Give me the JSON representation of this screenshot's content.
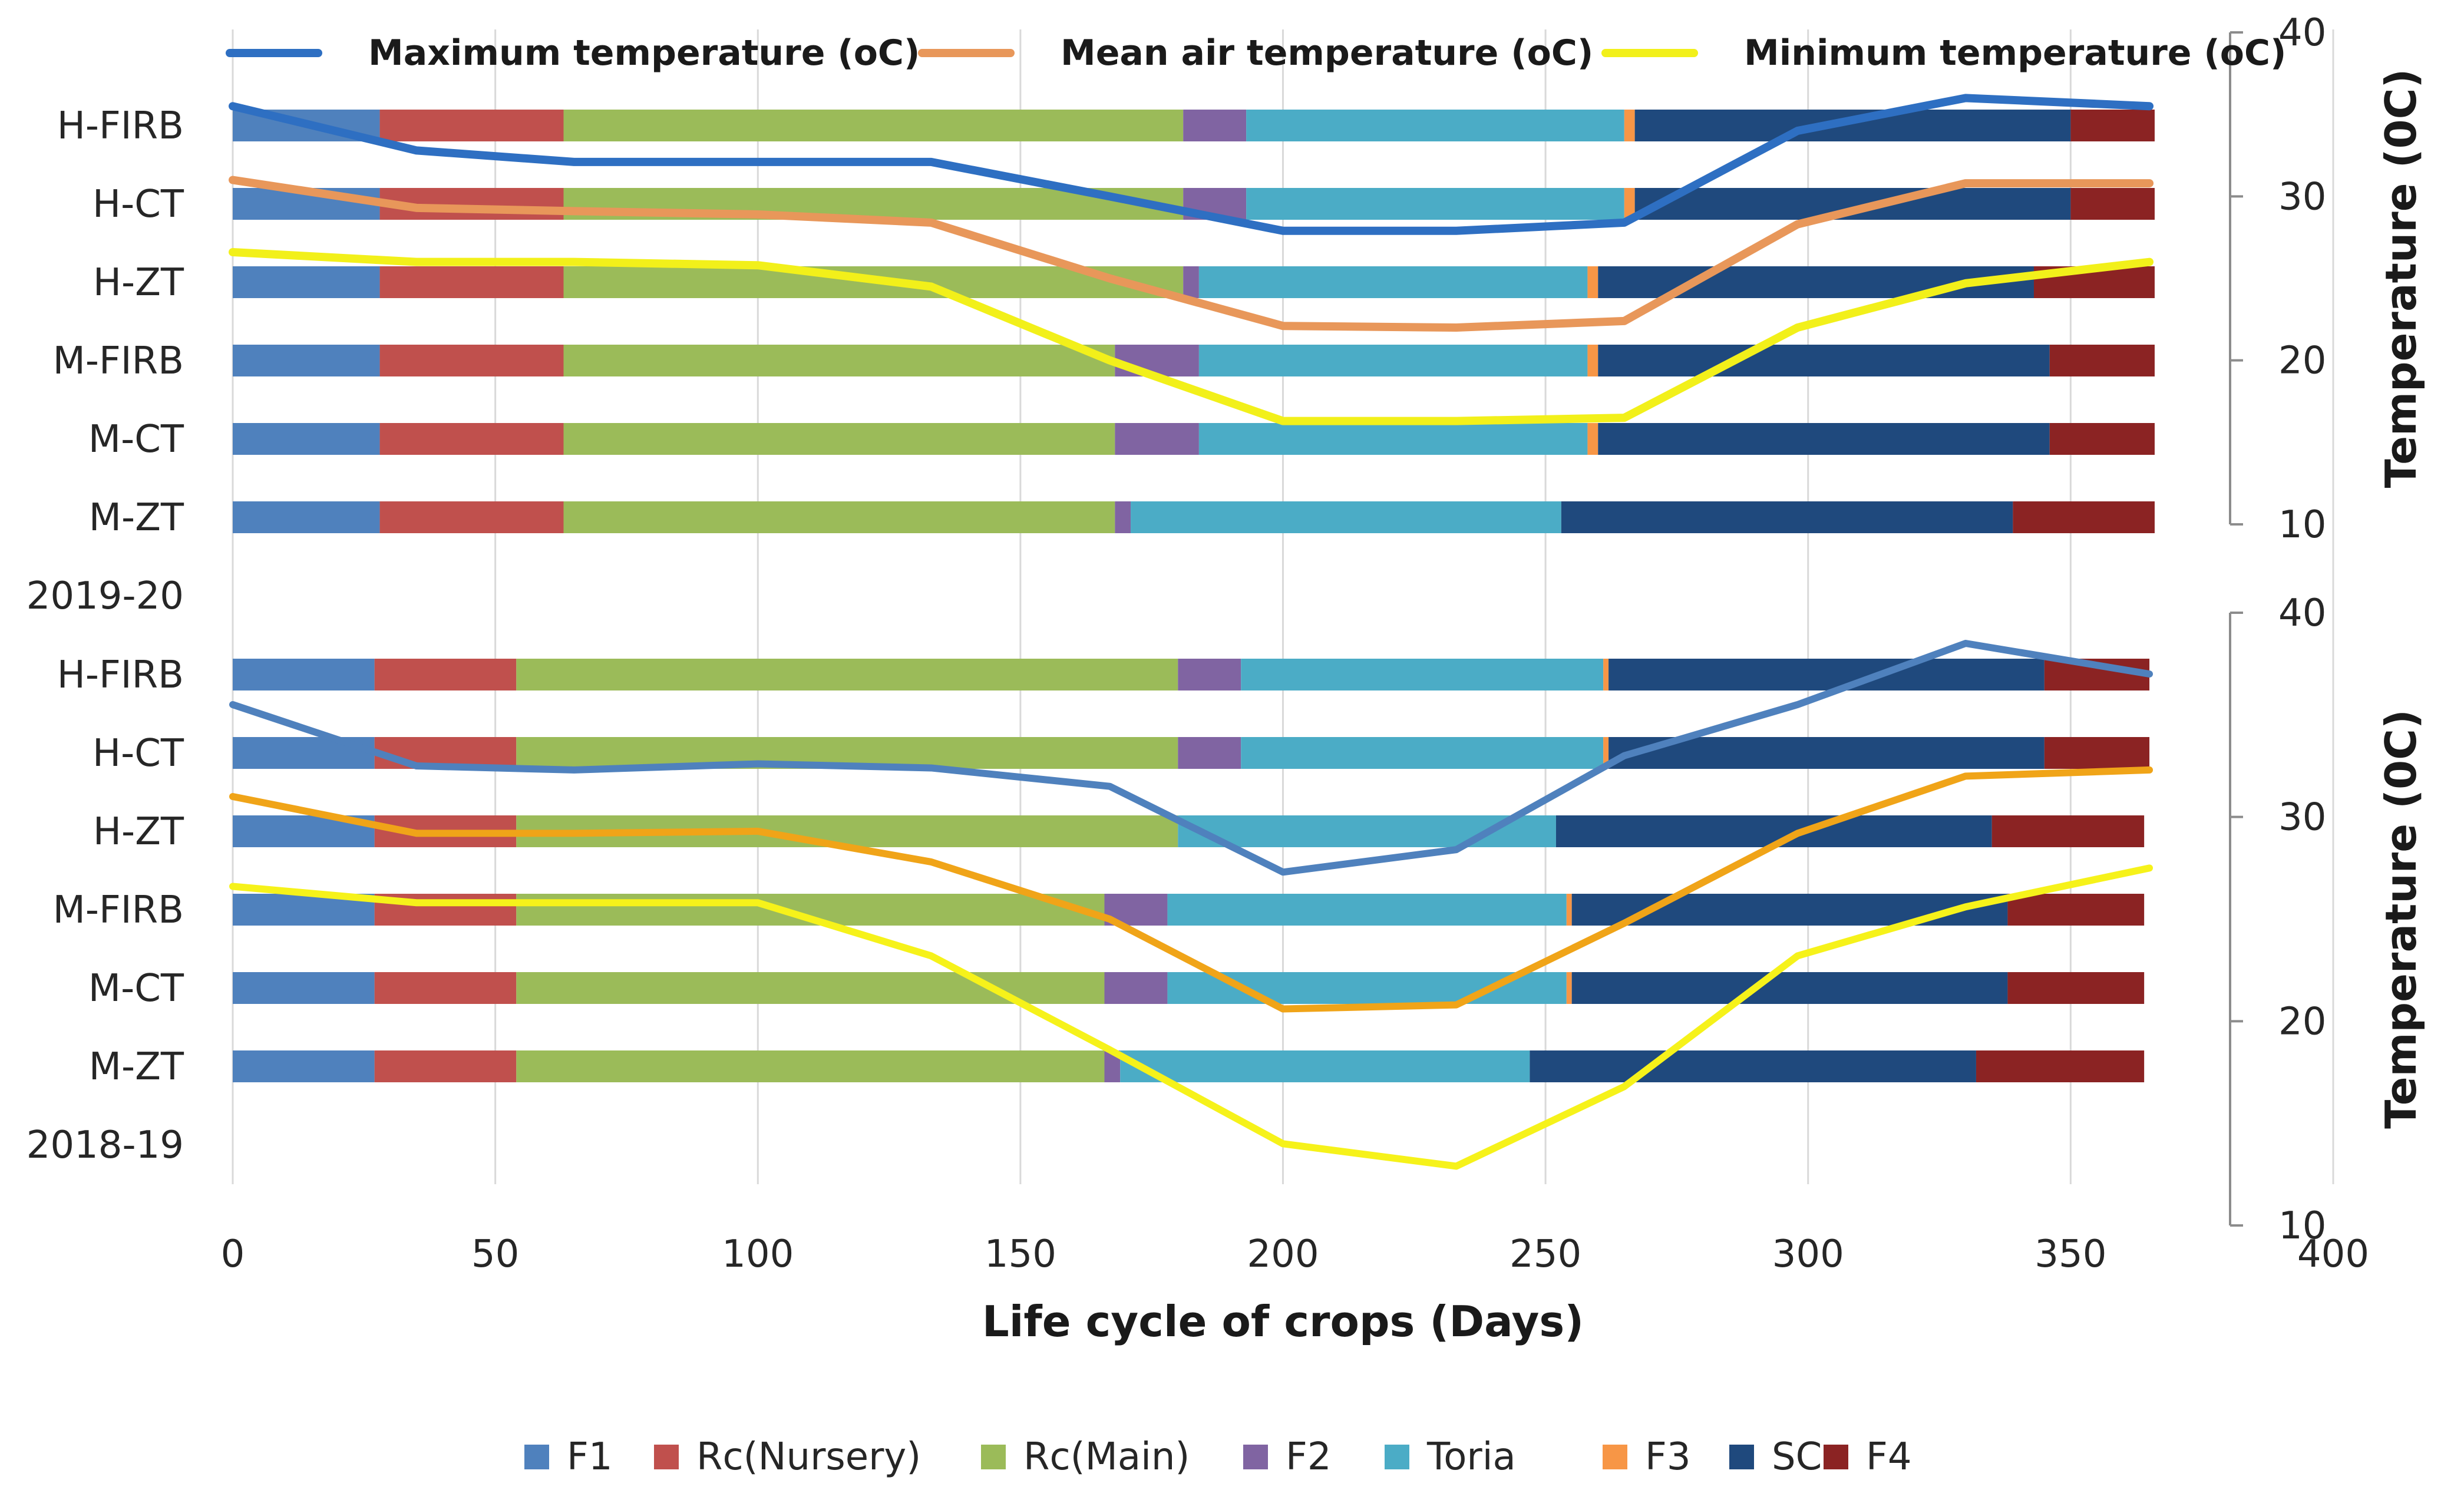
{
  "chart_data": {
    "type": "bar",
    "subtype": "stacked-horizontal-bar-with-temperature-lines",
    "xlabel": "Life cycle of crops (Days)",
    "xlim": [
      0,
      400
    ],
    "xticks": [
      0,
      50,
      100,
      150,
      200,
      250,
      300,
      350,
      400
    ],
    "categories": [
      "H-FIRB",
      "H-CT",
      "H-ZT",
      "M-FIRB",
      "M-CT",
      "M-ZT",
      "2019-20",
      "H-FIRB",
      "H-CT",
      "H-ZT",
      "M-FIRB",
      "M-CT",
      "M-ZT",
      "2018-19"
    ],
    "phases": [
      {
        "name": "F1",
        "color": "#4F81BD"
      },
      {
        "name": "Rc(Nursery)",
        "color": "#C0504D"
      },
      {
        "name": "Rc(Main)",
        "color": "#9BBB59"
      },
      {
        "name": "F2",
        "color": "#8064A2"
      },
      {
        "name": "Toria",
        "color": "#4BACC6"
      },
      {
        "name": "F3",
        "color": "#F79646"
      },
      {
        "name": "SC",
        "color": "#1F497D"
      },
      {
        "name": "F4",
        "color": "#8B2323"
      }
    ],
    "panels": [
      {
        "year": "2019-20",
        "y2label": "Temperature (0C)",
        "y2lim": [
          10,
          40
        ],
        "y2ticks": [
          10,
          20,
          30,
          40
        ],
        "rows": [
          {
            "label": "H-FIRB",
            "durations": [
              28,
              35,
              118,
              12,
              72,
              2,
              83,
              16
            ]
          },
          {
            "label": "H-CT",
            "durations": [
              28,
              35,
              118,
              12,
              72,
              2,
              83,
              16
            ]
          },
          {
            "label": "H-ZT",
            "durations": [
              28,
              35,
              118,
              3,
              74,
              2,
              83,
              23
            ]
          },
          {
            "label": "M-FIRB",
            "durations": [
              28,
              35,
              105,
              16,
              74,
              2,
              86,
              20
            ]
          },
          {
            "label": "M-CT",
            "durations": [
              28,
              35,
              105,
              16,
              74,
              2,
              86,
              20
            ]
          },
          {
            "label": "M-ZT",
            "durations": [
              28,
              35,
              105,
              3,
              82,
              0,
              86,
              27
            ]
          }
        ],
        "series": [
          {
            "name": "Maximum temperature (oC)",
            "color": "#2E6FC2",
            "x": [
              0,
              35,
              65,
              100,
              133,
              167,
              200,
              233,
              265,
              298,
              330,
              365
            ],
            "y": [
              35.5,
              32.8,
              32.1,
              32.1,
              32.1,
              30.0,
              27.9,
              27.9,
              28.4,
              34.0,
              36.0,
              35.5
            ]
          },
          {
            "name": "Mean air temperature (oC)",
            "color": "#E8975A",
            "x": [
              0,
              35,
              65,
              100,
              133,
              167,
              200,
              233,
              265,
              298,
              330,
              365
            ],
            "y": [
              31.0,
              29.3,
              29.1,
              28.9,
              28.4,
              25.0,
              22.1,
              22.0,
              22.4,
              28.3,
              30.8,
              30.8
            ]
          },
          {
            "name": "Minimum temperature (oC)",
            "color": "#F2F01A",
            "x": [
              0,
              35,
              65,
              100,
              133,
              167,
              200,
              233,
              265,
              298,
              330,
              365
            ],
            "y": [
              26.6,
              26.0,
              26.0,
              25.8,
              24.5,
              20.0,
              16.3,
              16.3,
              16.5,
              22.0,
              24.7,
              26.0
            ]
          }
        ]
      },
      {
        "year": "2018-19",
        "y2label": "Temperature (0C)",
        "y2lim": [
          10,
          40
        ],
        "y2ticks": [
          10,
          20,
          30,
          40
        ],
        "rows": [
          {
            "label": "H-FIRB",
            "durations": [
              27,
              27,
              126,
              12,
              69,
              1,
              83,
              20
            ]
          },
          {
            "label": "H-CT",
            "durations": [
              27,
              27,
              126,
              12,
              69,
              1,
              83,
              20
            ]
          },
          {
            "label": "H-ZT",
            "durations": [
              27,
              27,
              126,
              0,
              72,
              0,
              83,
              29
            ]
          },
          {
            "label": "M-FIRB",
            "durations": [
              27,
              27,
              112,
              12,
              76,
              1,
              83,
              26
            ]
          },
          {
            "label": "M-CT",
            "durations": [
              27,
              27,
              112,
              12,
              76,
              1,
              83,
              26
            ]
          },
          {
            "label": "M-ZT",
            "durations": [
              27,
              27,
              112,
              3,
              78,
              0,
              85,
              32
            ]
          }
        ],
        "series": [
          {
            "name": "Maximum temperature (oC)",
            "color": "#4F81BD",
            "x": [
              0,
              35,
              65,
              100,
              133,
              167,
              200,
              233,
              265,
              298,
              330,
              365
            ],
            "y": [
              35.5,
              32.5,
              32.3,
              32.6,
              32.4,
              31.5,
              27.3,
              28.4,
              33.0,
              35.5,
              38.5,
              37.0
            ]
          },
          {
            "name": "Mean air temperature (oC)",
            "color": "#F0A418",
            "x": [
              0,
              35,
              65,
              100,
              133,
              167,
              200,
              233,
              265,
              298,
              330,
              365
            ],
            "y": [
              31.0,
              29.2,
              29.2,
              29.3,
              27.8,
              25.0,
              20.6,
              20.8,
              24.8,
              29.2,
              32.0,
              32.3
            ]
          },
          {
            "name": "Minimum temperature (oC)",
            "color": "#F6F21A",
            "x": [
              0,
              35,
              65,
              100,
              133,
              167,
              200,
              233,
              265,
              298,
              330,
              365
            ],
            "y": [
              26.6,
              25.8,
              25.8,
              25.8,
              23.2,
              18.6,
              14.0,
              12.9,
              16.8,
              23.2,
              25.6,
              27.5
            ]
          }
        ]
      }
    ],
    "legend_top": [
      "Maximum temperature (oC)",
      "Mean air temperature (oC)",
      "Minimum temperature (oC)"
    ],
    "legend_bottom": [
      "F1",
      "Rc(Nursery)",
      "Rc(Main)",
      "F2",
      "Toria",
      "F3",
      "SC",
      "F4"
    ]
  }
}
